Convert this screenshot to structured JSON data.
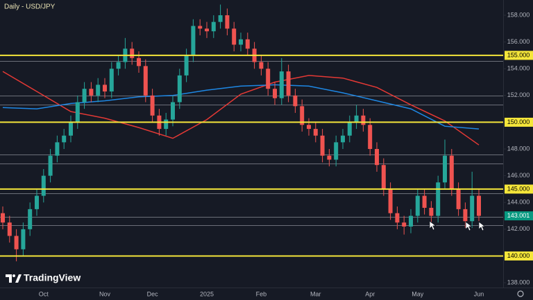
{
  "chart_data": {
    "type": "candlestick",
    "title": "Daily - USD/JPY",
    "watermark": "TradingView",
    "categories": [
      null,
      null,
      null,
      null,
      null,
      null,
      "Oct",
      null,
      null,
      null,
      null,
      null,
      null,
      null,
      null,
      "Nov",
      null,
      null,
      null,
      null,
      null,
      null,
      "Dec",
      null,
      null,
      null,
      null,
      null,
      null,
      null,
      "2025",
      null,
      null,
      null,
      null,
      null,
      null,
      null,
      "Feb",
      null,
      null,
      null,
      null,
      null,
      null,
      null,
      "Mar",
      null,
      null,
      null,
      null,
      null,
      null,
      null,
      "Apr",
      null,
      null,
      null,
      null,
      null,
      null,
      "May",
      null,
      null,
      null,
      null,
      null,
      null,
      null,
      null,
      "Jun"
    ],
    "open": [
      143.2,
      142.5,
      141.5,
      140.5,
      142,
      143.5,
      144.5,
      146,
      147.5,
      148.5,
      149,
      150,
      151.5,
      152.5,
      152,
      152.8,
      152.3,
      154,
      154.5,
      155.5,
      154.8,
      154.2,
      152,
      150.5,
      149.5,
      150.2,
      151.5,
      153.5,
      155,
      157.2,
      157,
      156.8,
      157.5,
      158,
      157,
      155.8,
      156.2,
      155.5,
      154.5,
      154,
      152.5,
      151.8,
      153.8,
      152,
      151.2,
      149.8,
      149.5,
      149,
      147.5,
      147.2,
      148.5,
      149,
      150,
      150.5,
      149.8,
      148,
      146.8,
      145,
      143.2,
      142.5,
      142.2,
      143,
      144.5,
      143.6,
      143,
      145.5,
      147.5,
      145,
      143.5,
      142.6,
      144.5
    ],
    "high": [
      143.7,
      143.0,
      142.0,
      142.5,
      144.0,
      145.0,
      146.5,
      148.0,
      149.0,
      149.5,
      150.5,
      152.0,
      153.0,
      153.0,
      153.3,
      153.3,
      154.5,
      155.0,
      156.3,
      156.0,
      155.3,
      154.7,
      152.5,
      151.0,
      150.7,
      152.0,
      154.0,
      155.5,
      157.7,
      157.7,
      157.5,
      158.0,
      158.8,
      158.5,
      157.5,
      156.7,
      156.7,
      156.0,
      155.0,
      154.5,
      153.0,
      154.8,
      154.3,
      152.5,
      151.7,
      150.3,
      150.0,
      149.5,
      148.0,
      149.0,
      149.5,
      150.5,
      151.3,
      151.0,
      150.3,
      148.5,
      147.3,
      145.5,
      143.7,
      143.0,
      143.5,
      145.0,
      145.0,
      144.1,
      146.0,
      148.7,
      148.0,
      145.5,
      144.0,
      146.3,
      145.0
    ],
    "low": [
      142.0,
      141.0,
      139.6,
      140.0,
      141.5,
      143.0,
      144.0,
      145.5,
      147.0,
      148.0,
      148.5,
      149.5,
      151.0,
      151.5,
      151.5,
      151.8,
      151.8,
      153.5,
      154.0,
      154.3,
      153.7,
      151.5,
      150.0,
      149.0,
      149.0,
      149.7,
      151.0,
      153.0,
      154.5,
      156.5,
      156.3,
      156.3,
      157.0,
      156.5,
      155.3,
      155.3,
      155.0,
      154.0,
      153.5,
      152.0,
      151.3,
      151.3,
      151.5,
      150.7,
      149.3,
      149.0,
      148.5,
      147.0,
      146.7,
      146.7,
      148.0,
      148.5,
      149.5,
      149.3,
      147.5,
      146.3,
      144.5,
      142.7,
      142.0,
      141.6,
      141.7,
      142.5,
      143.1,
      142.3,
      142.5,
      145.0,
      144.5,
      143.0,
      142.1,
      142.1,
      142.6
    ],
    "close": [
      142.5,
      141.5,
      140.5,
      142,
      143.5,
      144.5,
      146,
      147.5,
      148.5,
      149,
      150,
      151.5,
      152.5,
      152,
      152.8,
      152.3,
      154,
      154.5,
      155.5,
      154.8,
      154.2,
      152,
      150.5,
      149.5,
      150.2,
      151.5,
      153.5,
      155,
      157.2,
      157,
      156.8,
      157.5,
      158,
      157,
      155.8,
      156.2,
      155.5,
      154.5,
      154,
      152.5,
      151.8,
      153.8,
      152,
      151.2,
      149.8,
      149.5,
      149,
      147.5,
      147.2,
      148.5,
      149,
      150,
      150.5,
      149.8,
      148,
      146.8,
      145,
      143.2,
      142.5,
      142.2,
      143,
      144.5,
      143.6,
      143,
      145.5,
      147.5,
      145,
      143.5,
      142.6,
      144.5,
      143.001
    ],
    "up_color": "#26a69a",
    "down_color": "#ef5350",
    "moving_averages": [
      {
        "color": "#e53935",
        "x": [
          0,
          5,
          10,
          15,
          20,
          25,
          30,
          35,
          40,
          45,
          50,
          55,
          60,
          65,
          70
        ],
        "values": [
          153.8,
          152.3,
          150.8,
          150.3,
          149.6,
          148.8,
          150.2,
          152.1,
          153.0,
          153.5,
          153.3,
          152.6,
          151.3,
          150.1,
          148.3
        ]
      },
      {
        "color": "#1e88e5",
        "x": [
          0,
          5,
          10,
          15,
          20,
          25,
          30,
          35,
          40,
          45,
          50,
          55,
          60,
          65,
          70
        ],
        "values": [
          151.1,
          151.0,
          151.4,
          151.6,
          151.9,
          152.0,
          152.4,
          152.7,
          152.8,
          152.7,
          152.2,
          151.6,
          151.0,
          149.7,
          149.5
        ]
      }
    ],
    "levels": [
      {
        "value": 155,
        "label": "155.000"
      },
      {
        "value": 150,
        "label": "150.000"
      },
      {
        "value": 145,
        "label": "145.000"
      },
      {
        "value": 140,
        "label": "140.000"
      }
    ],
    "level_color": "#f5e63a",
    "support_lines": [
      154.6,
      152.0,
      151.3,
      147.6,
      146.9,
      144.7,
      142.9,
      142.3
    ],
    "support_color": "#8a8d96",
    "last_price_color": "#089981",
    "ylim": [
      137.64,
      159.14
    ],
    "yticks": [
      {
        "value": 158,
        "label": "158.000"
      },
      {
        "value": 156,
        "label": "156.000"
      },
      {
        "value": 154,
        "label": "154.000"
      },
      {
        "value": 152,
        "label": "152.000"
      },
      {
        "value": 148,
        "label": "148.000"
      },
      {
        "value": 146,
        "label": "146.000"
      },
      {
        "value": 144,
        "label": "144.000"
      },
      {
        "value": 142,
        "label": "142.000"
      },
      {
        "value": 138,
        "label": "138.000"
      }
    ]
  }
}
